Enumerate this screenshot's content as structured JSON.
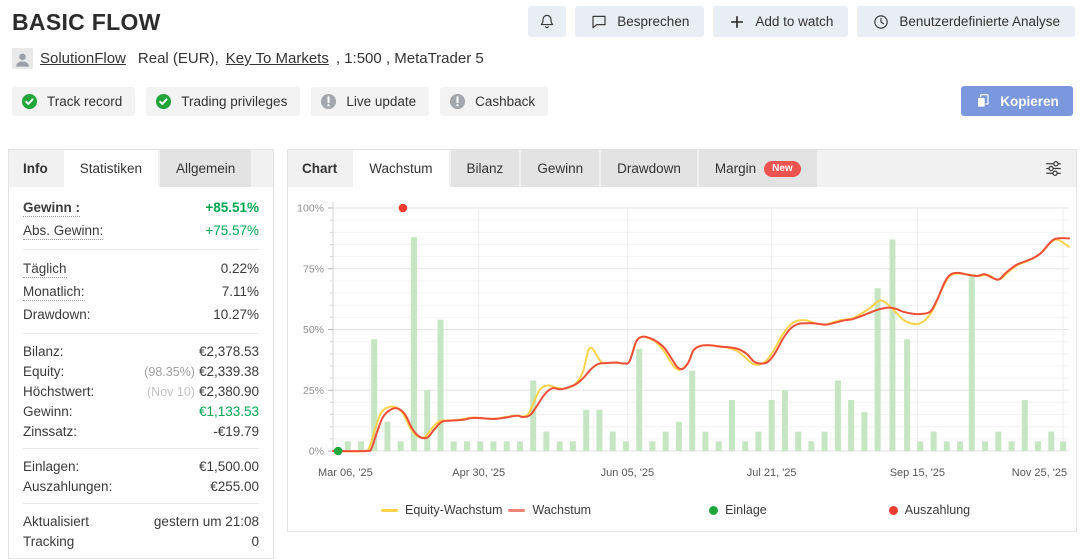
{
  "header": {
    "title": "BASIC FLOW",
    "actions": [
      {
        "name": "notifications",
        "icon": "bell",
        "label": ""
      },
      {
        "name": "discuss",
        "icon": "comment",
        "label": "Besprechen"
      },
      {
        "name": "add-to-watch",
        "icon": "plus",
        "label": "Add to watch"
      },
      {
        "name": "custom-analysis",
        "icon": "clock",
        "label": "Benutzerdefinierte Analyse"
      }
    ],
    "author": "SolutionFlow",
    "account_pre": "Real (EUR),",
    "broker": "Key To Markets",
    "account_post": ", 1:500 , MetaTrader 5",
    "copy_label": "Kopieren"
  },
  "badges": [
    {
      "label": "Track record",
      "status": "check"
    },
    {
      "label": "Trading privileges",
      "status": "check"
    },
    {
      "label": "Live update",
      "status": "info"
    },
    {
      "label": "Cashback",
      "status": "info"
    }
  ],
  "sidebar": {
    "tabs": [
      {
        "label": "Info",
        "style": "plain"
      },
      {
        "label": "Statistiken",
        "style": "active"
      },
      {
        "label": "Allgemein",
        "style": "inactive"
      }
    ],
    "groups": [
      [
        {
          "label": "Gewinn :",
          "dotted": true,
          "bold": true,
          "value": "+85.51%",
          "green": true,
          "vbold": true
        },
        {
          "label": "Abs. Gewinn:",
          "dotted": true,
          "value": "+75.57%",
          "green": true
        }
      ],
      [
        {
          "label": "Täglich",
          "dotted": true,
          "value": "0.22%"
        },
        {
          "label": "Monatlich:",
          "dotted": true,
          "value": "7.11%"
        },
        {
          "label": "Drawdown:",
          "value": "10.27%"
        }
      ],
      [
        {
          "label": "Bilanz:",
          "value": "€2,378.53"
        },
        {
          "label": "Equity:",
          "prefix": "(98.35%)",
          "value": "€2,339.38"
        },
        {
          "label": "Höchstwert:",
          "prefix": "(Nov 10)",
          "prefix_light": true,
          "value": "€2,380.90"
        },
        {
          "label": "Gewinn:",
          "value": "€1,133.53",
          "green": true
        },
        {
          "label": "Zinssatz:",
          "value": "-€19.79"
        }
      ],
      [
        {
          "label": "Einlagen:",
          "value": "€1,500.00"
        },
        {
          "label": "Auszahlungen:",
          "value": "€255.00"
        }
      ],
      [
        {
          "label": "Aktualisiert",
          "value": "gestern um 21:08"
        },
        {
          "label": "Tracking",
          "value": "0"
        }
      ]
    ]
  },
  "chart_tabs": [
    {
      "label": "Chart",
      "style": "plain"
    },
    {
      "label": "Wachstum",
      "style": "active"
    },
    {
      "label": "Bilanz",
      "style": "inactive"
    },
    {
      "label": "Gewinn",
      "style": "inactive"
    },
    {
      "label": "Drawdown",
      "style": "inactive"
    },
    {
      "label": "Margin",
      "style": "inactive",
      "badge": "New"
    }
  ],
  "colors": {
    "accent_green": "#00a651",
    "copy_button_blue": "#7b97dd",
    "new_badge_red": "#ef5350",
    "badge_check_green": "#24a53c",
    "badge_info_gray": "#a3a7ab"
  },
  "chart_data": {
    "type": "bar+line",
    "title": "Wachstum (growth %) over time",
    "ylim": [
      0,
      100
    ],
    "y_ticks": [
      0,
      25,
      50,
      75,
      100
    ],
    "y_unit": "%",
    "grid": "on",
    "legend_position": "bottom",
    "x_labels": [
      {
        "label": "Mar 06, '25",
        "f": 0.0
      },
      {
        "label": "Apr 30, '25",
        "f": 0.198
      },
      {
        "label": "Jun 05, '25",
        "f": 0.4
      },
      {
        "label": "Jul 21, '25",
        "f": 0.596
      },
      {
        "label": "Sep 15, '25",
        "f": 0.794
      },
      {
        "label": "Nov 25, '25",
        "f": 0.992
      }
    ],
    "bars": {
      "name": "weekly-activity",
      "color": "#c6e6c3",
      "points": [
        [
          0.02,
          4
        ],
        [
          0.038,
          4
        ],
        [
          0.056,
          46
        ],
        [
          0.074,
          12
        ],
        [
          0.092,
          4
        ],
        [
          0.11,
          88
        ],
        [
          0.128,
          25
        ],
        [
          0.146,
          54
        ],
        [
          0.164,
          4
        ],
        [
          0.182,
          4
        ],
        [
          0.2,
          4
        ],
        [
          0.218,
          4
        ],
        [
          0.236,
          4
        ],
        [
          0.254,
          4
        ],
        [
          0.272,
          29
        ],
        [
          0.29,
          8
        ],
        [
          0.308,
          4
        ],
        [
          0.326,
          4
        ],
        [
          0.344,
          17
        ],
        [
          0.362,
          17
        ],
        [
          0.38,
          8
        ],
        [
          0.398,
          4
        ],
        [
          0.416,
          42
        ],
        [
          0.434,
          4
        ],
        [
          0.452,
          8
        ],
        [
          0.47,
          12
        ],
        [
          0.488,
          33
        ],
        [
          0.506,
          8
        ],
        [
          0.524,
          4
        ],
        [
          0.542,
          21
        ],
        [
          0.56,
          4
        ],
        [
          0.578,
          8
        ],
        [
          0.596,
          21
        ],
        [
          0.614,
          25
        ],
        [
          0.632,
          8
        ],
        [
          0.65,
          4
        ],
        [
          0.668,
          8
        ],
        [
          0.686,
          29
        ],
        [
          0.704,
          21
        ],
        [
          0.722,
          16
        ],
        [
          0.74,
          67
        ],
        [
          0.76,
          87
        ],
        [
          0.78,
          46
        ],
        [
          0.798,
          4
        ],
        [
          0.816,
          8
        ],
        [
          0.834,
          4
        ],
        [
          0.852,
          4
        ],
        [
          0.868,
          72
        ],
        [
          0.886,
          4
        ],
        [
          0.904,
          8
        ],
        [
          0.922,
          4
        ],
        [
          0.94,
          21
        ],
        [
          0.958,
          4
        ],
        [
          0.976,
          8
        ],
        [
          0.992,
          4
        ]
      ]
    },
    "series": [
      {
        "name": "Equity-Wachstum",
        "color": "#fcd24c",
        "points": [
          [
            0,
            0
          ],
          [
            0.042,
            0
          ],
          [
            0.05,
            2
          ],
          [
            0.058,
            10
          ],
          [
            0.066,
            16
          ],
          [
            0.075,
            18
          ],
          [
            0.085,
            18
          ],
          [
            0.095,
            15.5
          ],
          [
            0.105,
            9.5
          ],
          [
            0.115,
            6
          ],
          [
            0.125,
            5.8
          ],
          [
            0.135,
            9.5
          ],
          [
            0.145,
            12.3
          ],
          [
            0.16,
            12.6
          ],
          [
            0.175,
            13
          ],
          [
            0.19,
            13.8
          ],
          [
            0.205,
            13.5
          ],
          [
            0.22,
            13.3
          ],
          [
            0.235,
            14
          ],
          [
            0.25,
            14.6
          ],
          [
            0.258,
            14.2
          ],
          [
            0.266,
            15.5
          ],
          [
            0.274,
            21
          ],
          [
            0.282,
            25.5
          ],
          [
            0.292,
            27
          ],
          [
            0.302,
            26.2
          ],
          [
            0.312,
            25.6
          ],
          [
            0.322,
            26.3
          ],
          [
            0.332,
            28.5
          ],
          [
            0.34,
            33
          ],
          [
            0.347,
            41.5
          ],
          [
            0.353,
            42
          ],
          [
            0.359,
            39
          ],
          [
            0.366,
            36.3
          ],
          [
            0.375,
            36.2
          ],
          [
            0.385,
            36.4
          ],
          [
            0.395,
            36
          ],
          [
            0.403,
            37
          ],
          [
            0.412,
            45
          ],
          [
            0.42,
            47
          ],
          [
            0.43,
            46.3
          ],
          [
            0.44,
            44.5
          ],
          [
            0.45,
            41
          ],
          [
            0.458,
            37
          ],
          [
            0.465,
            34.2
          ],
          [
            0.472,
            33.5
          ],
          [
            0.482,
            36
          ],
          [
            0.49,
            41.5
          ],
          [
            0.5,
            43.3
          ],
          [
            0.512,
            43.5
          ],
          [
            0.525,
            43
          ],
          [
            0.538,
            42.4
          ],
          [
            0.55,
            41
          ],
          [
            0.56,
            38.5
          ],
          [
            0.57,
            36
          ],
          [
            0.578,
            35.5
          ],
          [
            0.588,
            37
          ],
          [
            0.598,
            41
          ],
          [
            0.61,
            47.5
          ],
          [
            0.62,
            51.5
          ],
          [
            0.63,
            53.5
          ],
          [
            0.642,
            53.8
          ],
          [
            0.655,
            52.6
          ],
          [
            0.668,
            52
          ],
          [
            0.68,
            53
          ],
          [
            0.692,
            54
          ],
          [
            0.705,
            54.5
          ],
          [
            0.715,
            56
          ],
          [
            0.728,
            58.5
          ],
          [
            0.738,
            61
          ],
          [
            0.745,
            62
          ],
          [
            0.755,
            60
          ],
          [
            0.765,
            57
          ],
          [
            0.775,
            54
          ],
          [
            0.785,
            52.5
          ],
          [
            0.795,
            52.3
          ],
          [
            0.805,
            54
          ],
          [
            0.815,
            58
          ],
          [
            0.825,
            65
          ],
          [
            0.835,
            71
          ],
          [
            0.843,
            72.8
          ],
          [
            0.852,
            73
          ],
          [
            0.865,
            72.5
          ],
          [
            0.878,
            72
          ],
          [
            0.89,
            72.5
          ],
          [
            0.9,
            70.8
          ],
          [
            0.908,
            71
          ],
          [
            0.918,
            73.8
          ],
          [
            0.93,
            76.5
          ],
          [
            0.942,
            78
          ],
          [
            0.954,
            79.8
          ],
          [
            0.964,
            82
          ],
          [
            0.974,
            85.5
          ],
          [
            0.982,
            87
          ],
          [
            0.988,
            86.5
          ],
          [
            1,
            84
          ]
        ]
      },
      {
        "name": "Wachstum",
        "color": "#ee4f38",
        "points": [
          [
            0,
            0
          ],
          [
            0.045,
            0
          ],
          [
            0.052,
            1
          ],
          [
            0.06,
            8
          ],
          [
            0.068,
            14
          ],
          [
            0.078,
            17
          ],
          [
            0.088,
            17.5
          ],
          [
            0.098,
            15
          ],
          [
            0.108,
            9
          ],
          [
            0.118,
            5.8
          ],
          [
            0.128,
            5.5
          ],
          [
            0.138,
            9
          ],
          [
            0.148,
            12
          ],
          [
            0.16,
            12.5
          ],
          [
            0.175,
            12.8
          ],
          [
            0.19,
            13.6
          ],
          [
            0.205,
            13.4
          ],
          [
            0.22,
            13.2
          ],
          [
            0.235,
            13.8
          ],
          [
            0.25,
            14.5
          ],
          [
            0.258,
            14
          ],
          [
            0.268,
            14.8
          ],
          [
            0.278,
            19
          ],
          [
            0.288,
            23.5
          ],
          [
            0.298,
            25.8
          ],
          [
            0.308,
            25.4
          ],
          [
            0.318,
            26
          ],
          [
            0.33,
            27.5
          ],
          [
            0.34,
            30
          ],
          [
            0.35,
            33.5
          ],
          [
            0.36,
            35.8
          ],
          [
            0.372,
            36.2
          ],
          [
            0.385,
            36.4
          ],
          [
            0.395,
            36
          ],
          [
            0.403,
            37
          ],
          [
            0.412,
            45
          ],
          [
            0.42,
            47
          ],
          [
            0.43,
            46.5
          ],
          [
            0.44,
            45
          ],
          [
            0.45,
            42.5
          ],
          [
            0.46,
            38
          ],
          [
            0.468,
            34.5
          ],
          [
            0.475,
            33.8
          ],
          [
            0.483,
            36.5
          ],
          [
            0.49,
            41.5
          ],
          [
            0.5,
            43.3
          ],
          [
            0.512,
            43.5
          ],
          [
            0.525,
            43
          ],
          [
            0.54,
            42.6
          ],
          [
            0.552,
            41.8
          ],
          [
            0.562,
            40
          ],
          [
            0.572,
            36.8
          ],
          [
            0.58,
            36
          ],
          [
            0.59,
            36.5
          ],
          [
            0.6,
            40
          ],
          [
            0.612,
            46.5
          ],
          [
            0.622,
            50.5
          ],
          [
            0.632,
            52.3
          ],
          [
            0.645,
            52.6
          ],
          [
            0.658,
            52.4
          ],
          [
            0.67,
            52
          ],
          [
            0.682,
            52.8
          ],
          [
            0.695,
            53.8
          ],
          [
            0.705,
            54.2
          ],
          [
            0.718,
            55.5
          ],
          [
            0.73,
            57
          ],
          [
            0.742,
            58.3
          ],
          [
            0.755,
            59
          ],
          [
            0.765,
            58.5
          ],
          [
            0.775,
            57.3
          ],
          [
            0.788,
            56.5
          ],
          [
            0.8,
            56.4
          ],
          [
            0.812,
            57.5
          ],
          [
            0.822,
            63
          ],
          [
            0.832,
            70
          ],
          [
            0.84,
            72.8
          ],
          [
            0.85,
            73.3
          ],
          [
            0.862,
            72.6
          ],
          [
            0.875,
            72
          ],
          [
            0.885,
            72.7
          ],
          [
            0.898,
            71
          ],
          [
            0.905,
            70.6
          ],
          [
            0.915,
            73.5
          ],
          [
            0.928,
            76.5
          ],
          [
            0.94,
            78
          ],
          [
            0.952,
            79.5
          ],
          [
            0.962,
            81.5
          ],
          [
            0.972,
            85
          ],
          [
            0.98,
            87.2
          ],
          [
            0.99,
            87.6
          ],
          [
            1,
            87.5
          ]
        ]
      }
    ],
    "markers": [
      {
        "name": "Einlage",
        "color": "#1ea83c",
        "f": 0.007,
        "v": 0
      },
      {
        "name": "Auszahlung",
        "color": "#ee3b30",
        "f": 0.095,
        "v": 100
      }
    ],
    "legend": [
      {
        "label": "Equity-Wachstum",
        "type": "line",
        "color": "#fcd24c"
      },
      {
        "label": "Wachstum",
        "type": "line",
        "color": "#f0837a"
      },
      {
        "label": "Einlage",
        "type": "dot",
        "color": "#1ea83c"
      },
      {
        "label": "Auszahlung",
        "type": "dot",
        "color": "#ee3b30"
      }
    ]
  }
}
